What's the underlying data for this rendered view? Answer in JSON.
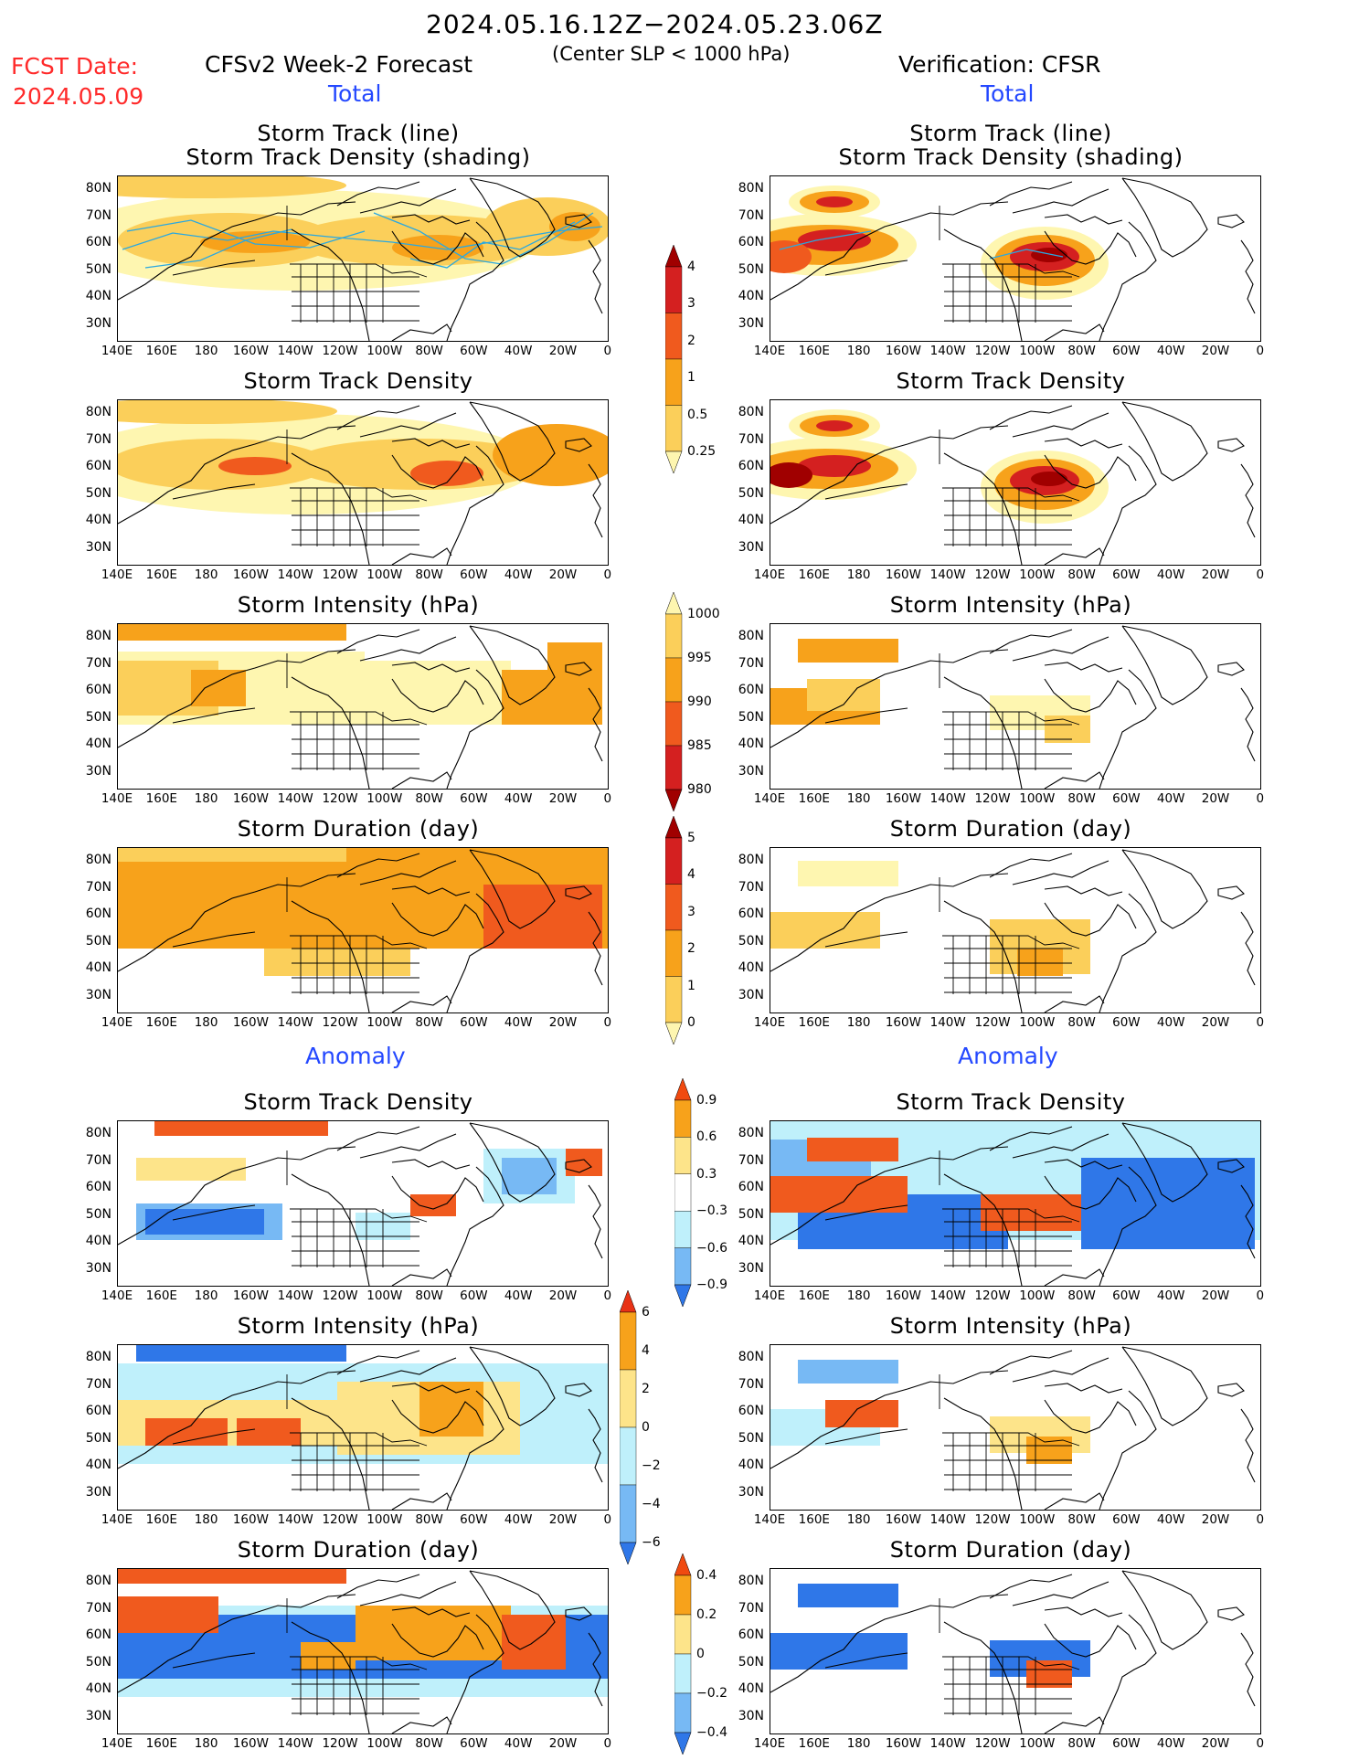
{
  "header": {
    "title": "2024.05.16.12Z−2024.05.23.06Z",
    "subtitle": "(Center SLP < 1000 hPa)",
    "fcst_label": "FCST Date:",
    "fcst_date": "2024.05.09",
    "left_heading": "CFSv2 Week-2 Forecast",
    "right_heading": "Verification: CFSR",
    "total_label": "Total",
    "anomaly_label": "Anomaly"
  },
  "panel_titles": {
    "track": [
      "Storm Track (line)",
      "Storm Track Density (shading)"
    ],
    "density": "Storm Track Density",
    "intensity": "Storm Intensity (hPa)",
    "duration": "Storm Duration (day)"
  },
  "axes": {
    "lat_labels": [
      "80N",
      "70N",
      "60N",
      "50N",
      "40N",
      "30N"
    ],
    "lon_labels": [
      "140E",
      "160E",
      "180",
      "160W",
      "140W",
      "120W",
      "100W",
      "80W",
      "60W",
      "40W",
      "20W",
      "0"
    ]
  },
  "colorbars": {
    "density_total": {
      "labels": [
        "4",
        "3",
        "2",
        "1",
        "0.5",
        "0.25"
      ],
      "colors": [
        "#a00000",
        "#d42020",
        "#f05a1e",
        "#f7a21b",
        "#fbcf5a",
        "#fef6b0"
      ]
    },
    "intensity_total": {
      "labels": [
        "1000",
        "995",
        "990",
        "985",
        "980"
      ],
      "colors": [
        "#fef6b0",
        "#fbcf5a",
        "#f7a21b",
        "#f05a1e",
        "#d42020",
        "#a00000"
      ]
    },
    "duration_total": {
      "labels": [
        "5",
        "4",
        "3",
        "2",
        "1",
        "0"
      ],
      "colors": [
        "#a00000",
        "#d42020",
        "#f05a1e",
        "#f7a21b",
        "#fbcf5a",
        "#fef6b0"
      ]
    },
    "density_anom": {
      "labels": [
        "0.9",
        "0.6",
        "0.3",
        "−0.3",
        "−0.6",
        "−0.9"
      ],
      "colors": [
        "#f04a10",
        "#f7a21b",
        "#fde48a",
        "#ffffff",
        "#bff0fb",
        "#77b9f4",
        "#2f77e8"
      ]
    },
    "intensity_anom": {
      "labels": [
        "6",
        "4",
        "2",
        "0",
        "−2",
        "−4",
        "−6"
      ],
      "colors": [
        "#e83216",
        "#f7a21b",
        "#fde48a",
        "#bff0fb",
        "#77b9f4",
        "#2f77e8"
      ]
    },
    "duration_anom": {
      "labels": [
        "0.4",
        "0.2",
        "0",
        "−0.2",
        "−0.4"
      ],
      "colors": [
        "#f04a10",
        "#f7a21b",
        "#fde48a",
        "#bff0fb",
        "#77b9f4",
        "#2f77e8"
      ]
    }
  },
  "colors": {
    "dark_red": "#a00000",
    "red": "#d42020",
    "orange_red": "#f05a1e",
    "orange": "#f7a21b",
    "light_orange": "#fbcf5a",
    "pale_yellow": "#fef6b0",
    "light_blue": "#bff0fb",
    "mid_blue": "#77b9f4",
    "dark_blue": "#2f77e8",
    "track_line": "#2aa8e0",
    "fcst_date_color": "#ff2a2a",
    "label_blue": "#2448ff"
  }
}
